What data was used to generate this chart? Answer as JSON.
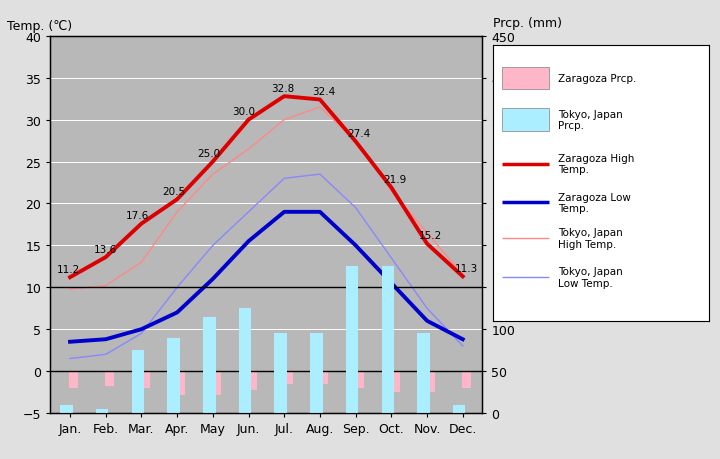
{
  "months": [
    "Jan.",
    "Feb.",
    "Mar.",
    "Apr.",
    "May",
    "Jun.",
    "Jul.",
    "Aug.",
    "Sep.",
    "Oct.",
    "Nov.",
    "Dec."
  ],
  "zaragoza_high": [
    11.2,
    13.6,
    17.6,
    20.5,
    25.0,
    30.0,
    32.8,
    32.4,
    27.4,
    21.9,
    15.2,
    11.3
  ],
  "zaragoza_low": [
    3.5,
    3.8,
    5.0,
    7.0,
    11.0,
    15.5,
    19.0,
    19.0,
    15.0,
    10.5,
    6.0,
    3.8
  ],
  "tokyo_high": [
    9.8,
    10.2,
    13.0,
    19.0,
    23.5,
    26.5,
    30.0,
    31.5,
    27.5,
    21.5,
    16.5,
    11.5
  ],
  "tokyo_low": [
    1.5,
    2.0,
    4.5,
    10.0,
    15.0,
    19.0,
    23.0,
    23.5,
    19.5,
    13.5,
    7.5,
    3.0
  ],
  "zaragoza_prcp_neg": [
    -2.0,
    -1.8,
    -2.0,
    -2.8,
    -2.8,
    -2.2,
    -1.5,
    -1.5,
    -2.0,
    -2.5,
    -2.5,
    -2.0
  ],
  "tokyo_prcp_mm": [
    10,
    5,
    75,
    90,
    115,
    125,
    95,
    95,
    175,
    175,
    95,
    10
  ],
  "temp_ylim": [
    -5,
    40
  ],
  "prcp_ylim": [
    0,
    450
  ],
  "fig_bg": "#e0e0e0",
  "plot_bg": "#b8b8b8",
  "zaragoza_high_color": "#dd0000",
  "zaragoza_low_color": "#0000cc",
  "tokyo_high_color": "#ff8888",
  "tokyo_low_color": "#8888ff",
  "zaragoza_prcp_color": "#ffb6c8",
  "tokyo_prcp_color": "#aaeeff",
  "title_left": "Temp. (℃)",
  "title_right": "Prcp. (mm)",
  "annot_zh": [
    11.2,
    13.6,
    17.6,
    20.5,
    25.0,
    30.0,
    32.8,
    32.4,
    27.4,
    21.9,
    15.2,
    11.3
  ],
  "gridline_color": "#888888",
  "border_color": "#000000"
}
